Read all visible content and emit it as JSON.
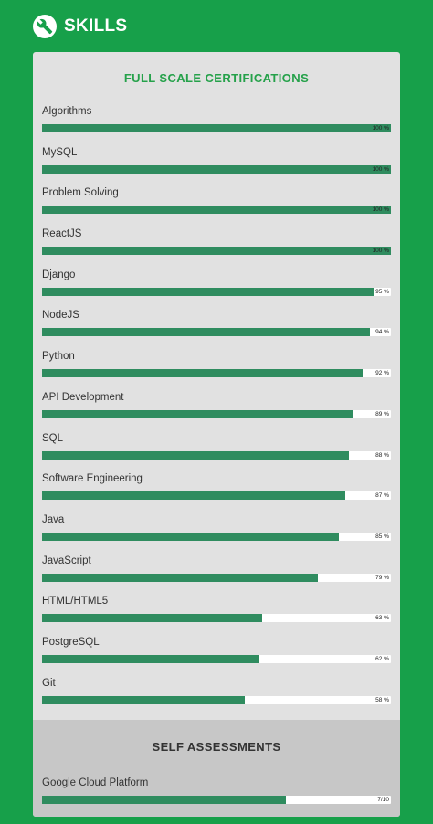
{
  "header": {
    "title": "SKILLS",
    "icon": "wrench-icon"
  },
  "full_scale": {
    "title": "FULL SCALE CERTIFICATIONS",
    "skills": [
      {
        "name": "Algorithms",
        "value": 100,
        "label": "100 %"
      },
      {
        "name": "MySQL",
        "value": 100,
        "label": "100 %"
      },
      {
        "name": "Problem Solving",
        "value": 100,
        "label": "100 %"
      },
      {
        "name": "ReactJS",
        "value": 100,
        "label": "100 %"
      },
      {
        "name": "Django",
        "value": 95,
        "label": "95 %"
      },
      {
        "name": "NodeJS",
        "value": 94,
        "label": "94 %"
      },
      {
        "name": "Python",
        "value": 92,
        "label": "92 %"
      },
      {
        "name": "API Development",
        "value": 89,
        "label": "89 %"
      },
      {
        "name": "SQL",
        "value": 88,
        "label": "88 %"
      },
      {
        "name": "Software Engineering",
        "value": 87,
        "label": "87 %"
      },
      {
        "name": "Java",
        "value": 85,
        "label": "85 %"
      },
      {
        "name": "JavaScript",
        "value": 79,
        "label": "79 %"
      },
      {
        "name": "HTML/HTML5",
        "value": 63,
        "label": "63 %"
      },
      {
        "name": "PostgreSQL",
        "value": 62,
        "label": "62 %"
      },
      {
        "name": "Git",
        "value": 58,
        "label": "58 %"
      }
    ]
  },
  "self_assessments": {
    "title": "SELF ASSESSMENTS",
    "skills": [
      {
        "name": "Google Cloud Platform",
        "value": 0.7,
        "label": "7/10"
      }
    ]
  },
  "colors": {
    "background": "#17a04a",
    "accent": "#25a14a",
    "bar_fill": "#2f8c5f"
  }
}
